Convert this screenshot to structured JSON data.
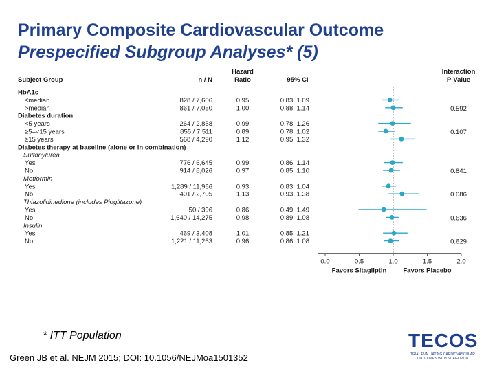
{
  "title": "Primary Composite Cardiovascular Outcome",
  "subtitle": "Prespecified Subgroup Analyses* (5)",
  "footnote": "* ITT Population",
  "citation": "Green JB et al. NEJM 2015; DOI: 10.1056/NEJMoa1501352",
  "logo": {
    "word": "TECOS",
    "tagline": "TRIAL EVALUATING CARDIOVASCULAR OUTCOMES WITH SITAGLIPTIN"
  },
  "colors": {
    "accent": "#1f3f8f",
    "marker": "#2aa7c9",
    "text": "#1a1a1a"
  },
  "chart_data": {
    "type": "forest",
    "headers": {
      "group": "Subject Group",
      "n": "n / N",
      "hr_line1": "Hazard",
      "hr_line2": "Ratio",
      "ci": "95% CI",
      "p_line1": "Interaction",
      "p_line2": "P-Value"
    },
    "x_axis": {
      "ticks": [
        "0.0",
        "0.5",
        "1.0",
        "1.5",
        "2.0"
      ],
      "xlim": [
        0,
        2.0
      ],
      "reference": 1.0,
      "left_label": "Favors Sitagliptin",
      "right_label": "Favors Placebo"
    },
    "rows": [
      {
        "label": "HbA1c",
        "kind": "header"
      },
      {
        "label": "≤median",
        "kind": "item",
        "n": "828 / 7,606",
        "hr": "0.95",
        "ci": "0.83, 1.09",
        "hr_value": 0.95,
        "lo": 0.83,
        "hi": 1.09
      },
      {
        "label": ">median",
        "kind": "item",
        "n": "861 / 7,050",
        "hr": "1.00",
        "ci": "0.88, 1.14",
        "hr_value": 1.0,
        "lo": 0.88,
        "hi": 1.14,
        "p": "0.592"
      },
      {
        "label": "Diabetes duration",
        "kind": "header"
      },
      {
        "label": "<5 years",
        "kind": "item",
        "n": "264 / 2,858",
        "hr": "0.99",
        "ci": "0.78, 1.26",
        "hr_value": 0.99,
        "lo": 0.78,
        "hi": 1.26
      },
      {
        "label": "≥5–<15 years",
        "kind": "item",
        "n": "855 / 7,511",
        "hr": "0.89",
        "ci": "0.78, 1.02",
        "hr_value": 0.89,
        "lo": 0.78,
        "hi": 1.02,
        "p": "0.107"
      },
      {
        "label": "≥15 years",
        "kind": "item",
        "n": "568 / 4,290",
        "hr": "1.12",
        "ci": "0.95, 1.32",
        "hr_value": 1.12,
        "lo": 0.95,
        "hi": 1.32
      },
      {
        "label": "Diabetes therapy at baseline (alone or in combination)",
        "kind": "header"
      },
      {
        "label": "Sulfonylurea",
        "kind": "subheader"
      },
      {
        "label": "Yes",
        "kind": "item",
        "n": "776 / 6,645",
        "hr": "0.99",
        "ci": "0.86, 1.14",
        "hr_value": 0.99,
        "lo": 0.86,
        "hi": 1.14
      },
      {
        "label": "No",
        "kind": "item",
        "n": "914 / 8,026",
        "hr": "0.97",
        "ci": "0.85, 1.10",
        "hr_value": 0.97,
        "lo": 0.85,
        "hi": 1.1,
        "p": "0.841"
      },
      {
        "label": "Metformin",
        "kind": "subheader"
      },
      {
        "label": "Yes",
        "kind": "item",
        "n": "1,289 / 11,966",
        "hr": "0.93",
        "ci": "0.83, 1.04",
        "hr_value": 0.93,
        "lo": 0.83,
        "hi": 1.04
      },
      {
        "label": "No",
        "kind": "item",
        "n": "401 / 2,705",
        "hr": "1.13",
        "ci": "0.93, 1.38",
        "hr_value": 1.13,
        "lo": 0.93,
        "hi": 1.38,
        "p": "0.086"
      },
      {
        "label": "Thiazolidinedione (includes Pioglitazone)",
        "kind": "subheader"
      },
      {
        "label": "Yes",
        "kind": "item",
        "n": "50 / 396",
        "hr": "0.86",
        "ci": "0.49, 1.49",
        "hr_value": 0.86,
        "lo": 0.49,
        "hi": 1.49
      },
      {
        "label": "No",
        "kind": "item",
        "n": "1,640 / 14,275",
        "hr": "0.98",
        "ci": "0.89, 1.08",
        "hr_value": 0.98,
        "lo": 0.89,
        "hi": 1.08,
        "p": "0.636"
      },
      {
        "label": "Insulin",
        "kind": "subheader"
      },
      {
        "label": "Yes",
        "kind": "item",
        "n": "469 / 3,408",
        "hr": "1.01",
        "ci": "0.85, 1.21",
        "hr_value": 1.01,
        "lo": 0.85,
        "hi": 1.21
      },
      {
        "label": "No",
        "kind": "item",
        "n": "1,221 / 11,263",
        "hr": "0.96",
        "ci": "0.86, 1.08",
        "hr_value": 0.96,
        "lo": 0.86,
        "hi": 1.08,
        "p": "0.629"
      }
    ]
  }
}
